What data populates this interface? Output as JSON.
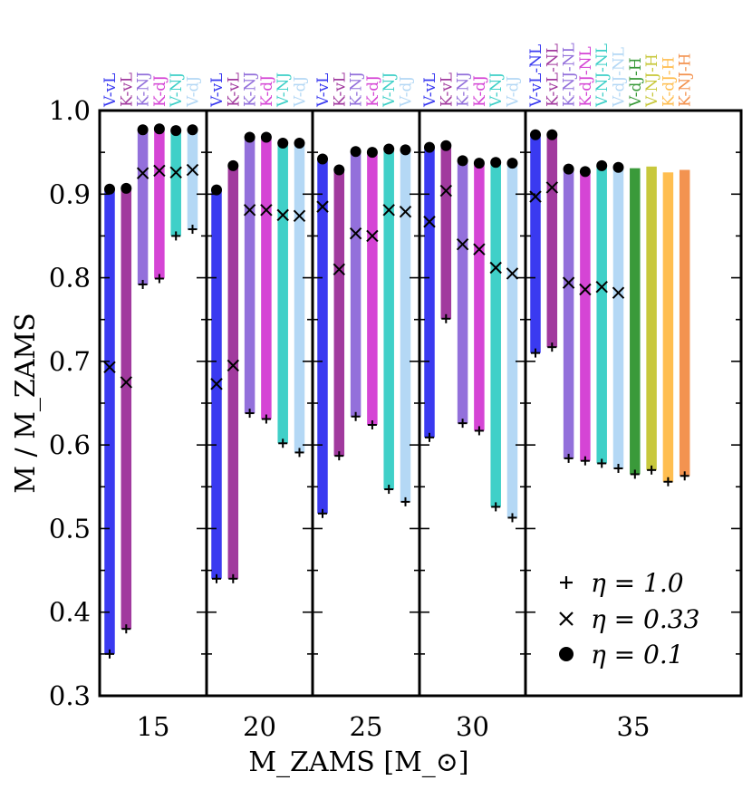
{
  "chart_data": {
    "type": "bar",
    "xlabel": "M_ZAMS [M_⊙]",
    "ylabel": "M / M_ZAMS",
    "ylim": [
      0.3,
      1.0
    ],
    "yticks": [
      "0.3",
      "0.4",
      "0.5",
      "0.6",
      "0.7",
      "0.8",
      "0.9",
      "1.0"
    ],
    "grid": false,
    "legend_position": "bottom-right",
    "legend": [
      {
        "marker": "plus",
        "label": "η = 1.0"
      },
      {
        "marker": "cross",
        "label": "η = 0.33"
      },
      {
        "marker": "dot",
        "label": "η = 0.1"
      }
    ],
    "groups": [
      {
        "label": "15",
        "models": [
          {
            "name": "V-vL",
            "color": "#3a3af0",
            "eta_1_0": 0.35,
            "eta_0_33": 0.693,
            "eta_0_1": 0.906
          },
          {
            "name": "K-vL",
            "color": "#a13a9e",
            "eta_1_0": 0.38,
            "eta_0_33": 0.675,
            "eta_0_1": 0.907
          },
          {
            "name": "K-NJ",
            "color": "#9370db",
            "eta_1_0": 0.792,
            "eta_0_33": 0.925,
            "eta_0_1": 0.977
          },
          {
            "name": "K-dJ",
            "color": "#d545d5",
            "eta_1_0": 0.799,
            "eta_0_33": 0.928,
            "eta_0_1": 0.978
          },
          {
            "name": "V-NJ",
            "color": "#40d0c8",
            "eta_1_0": 0.85,
            "eta_0_33": 0.926,
            "eta_0_1": 0.976
          },
          {
            "name": "V-dJ",
            "color": "#b4d8f5",
            "eta_1_0": 0.858,
            "eta_0_33": 0.929,
            "eta_0_1": 0.977
          }
        ]
      },
      {
        "label": "20",
        "models": [
          {
            "name": "V-vL",
            "color": "#3a3af0",
            "eta_1_0": 0.44,
            "eta_0_33": 0.673,
            "eta_0_1": 0.905
          },
          {
            "name": "K-vL",
            "color": "#a13a9e",
            "eta_1_0": 0.44,
            "eta_0_33": 0.695,
            "eta_0_1": 0.934
          },
          {
            "name": "K-NJ",
            "color": "#9370db",
            "eta_1_0": 0.638,
            "eta_0_33": 0.881,
            "eta_0_1": 0.968
          },
          {
            "name": "K-dJ",
            "color": "#d545d5",
            "eta_1_0": 0.631,
            "eta_0_33": 0.881,
            "eta_0_1": 0.968
          },
          {
            "name": "V-NJ",
            "color": "#40d0c8",
            "eta_1_0": 0.602,
            "eta_0_33": 0.875,
            "eta_0_1": 0.961
          },
          {
            "name": "V-dJ",
            "color": "#b4d8f5",
            "eta_1_0": 0.591,
            "eta_0_33": 0.874,
            "eta_0_1": 0.961
          }
        ]
      },
      {
        "label": "25",
        "models": [
          {
            "name": "V-vL",
            "color": "#3a3af0",
            "eta_1_0": 0.518,
            "eta_0_33": 0.885,
            "eta_0_1": 0.942
          },
          {
            "name": "K-vL",
            "color": "#a13a9e",
            "eta_1_0": 0.587,
            "eta_0_33": 0.81,
            "eta_0_1": 0.929
          },
          {
            "name": "K-NJ",
            "color": "#9370db",
            "eta_1_0": 0.634,
            "eta_0_33": 0.853,
            "eta_0_1": 0.951
          },
          {
            "name": "K-dJ",
            "color": "#d545d5",
            "eta_1_0": 0.624,
            "eta_0_33": 0.85,
            "eta_0_1": 0.95
          },
          {
            "name": "V-NJ",
            "color": "#40d0c8",
            "eta_1_0": 0.547,
            "eta_0_33": 0.881,
            "eta_0_1": 0.954
          },
          {
            "name": "V-dJ",
            "color": "#b4d8f5",
            "eta_1_0": 0.532,
            "eta_0_33": 0.879,
            "eta_0_1": 0.953
          }
        ]
      },
      {
        "label": "30",
        "models": [
          {
            "name": "V-vL",
            "color": "#3a3af0",
            "eta_1_0": 0.609,
            "eta_0_33": 0.867,
            "eta_0_1": 0.956
          },
          {
            "name": "K-vL",
            "color": "#a13a9e",
            "eta_1_0": 0.751,
            "eta_0_33": 0.904,
            "eta_0_1": 0.958
          },
          {
            "name": "K-NJ",
            "color": "#9370db",
            "eta_1_0": 0.626,
            "eta_0_33": 0.84,
            "eta_0_1": 0.94
          },
          {
            "name": "K-dJ",
            "color": "#d545d5",
            "eta_1_0": 0.617,
            "eta_0_33": 0.834,
            "eta_0_1": 0.937
          },
          {
            "name": "V-NJ",
            "color": "#40d0c8",
            "eta_1_0": 0.526,
            "eta_0_33": 0.812,
            "eta_0_1": 0.938
          },
          {
            "name": "V-dJ",
            "color": "#b4d8f5",
            "eta_1_0": 0.513,
            "eta_0_33": 0.805,
            "eta_0_1": 0.937
          }
        ]
      },
      {
        "label": "35",
        "models": [
          {
            "name": "V-vL-NL",
            "color": "#3a3af0",
            "eta_1_0": 0.71,
            "eta_0_33": 0.897,
            "eta_0_1": 0.971
          },
          {
            "name": "K-vL-NL",
            "color": "#a13a9e",
            "eta_1_0": 0.717,
            "eta_0_33": 0.908,
            "eta_0_1": 0.971
          },
          {
            "name": "K-NJ-NL",
            "color": "#9370db",
            "eta_1_0": 0.584,
            "eta_0_33": 0.794,
            "eta_0_1": 0.93
          },
          {
            "name": "K-dJ-NL",
            "color": "#d545d5",
            "eta_1_0": 0.581,
            "eta_0_33": 0.786,
            "eta_0_1": 0.927
          },
          {
            "name": "V-NJ-NL",
            "color": "#40d0c8",
            "eta_1_0": 0.578,
            "eta_0_33": 0.789,
            "eta_0_1": 0.934
          },
          {
            "name": "V-dJ-NL",
            "color": "#b4d8f5",
            "eta_1_0": 0.572,
            "eta_0_33": 0.782,
            "eta_0_1": 0.932
          },
          {
            "name": "V-dJ-H",
            "color": "#3a9a3a",
            "eta_1_0": 0.565,
            "bar_top": 0.931
          },
          {
            "name": "V-NJ-H",
            "color": "#c8c83c",
            "eta_1_0": 0.57,
            "bar_top": 0.933
          },
          {
            "name": "K-dJ-H",
            "color": "#ffbe50",
            "eta_1_0": 0.556,
            "bar_top": 0.926
          },
          {
            "name": "K-NJ-H",
            "color": "#f39350",
            "eta_1_0": 0.563,
            "bar_top": 0.929
          }
        ]
      }
    ]
  }
}
